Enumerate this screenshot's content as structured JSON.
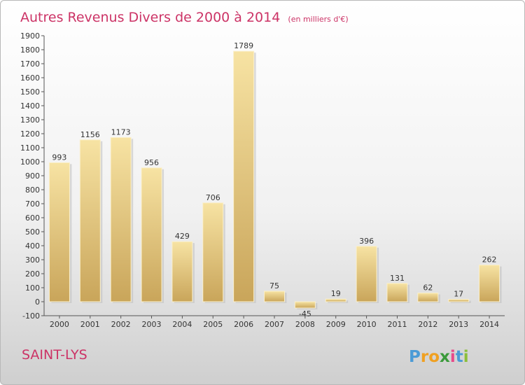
{
  "chart_data": {
    "type": "bar",
    "title": "Autres Revenus Divers de 2000 à 2014",
    "subtitle": "(en milliers d'€)",
    "categories": [
      "2000",
      "2001",
      "2002",
      "2003",
      "2004",
      "2005",
      "2006",
      "2007",
      "2008",
      "2009",
      "2010",
      "2011",
      "2012",
      "2013",
      "2014"
    ],
    "values": [
      993,
      1156,
      1173,
      956,
      429,
      706,
      1789,
      75,
      -45,
      19,
      396,
      131,
      62,
      17,
      262
    ],
    "ylim": [
      -100,
      1900
    ],
    "yticks": [
      -100,
      0,
      100,
      200,
      300,
      400,
      500,
      600,
      700,
      800,
      900,
      1000,
      1100,
      1200,
      1300,
      1400,
      1500,
      1600,
      1700,
      1800,
      1900
    ],
    "grid": false,
    "bar_color": "#e9cf86"
  },
  "location": "SAINT-LYS",
  "brand": {
    "letters": [
      "P",
      "r",
      "o",
      "x",
      "i",
      "t",
      "i"
    ],
    "colors": [
      "#4b9bd6",
      "#f0a020",
      "#f0a020",
      "#3a9a3a",
      "#e84a8a",
      "#4b9bd6",
      "#8bbf3a"
    ]
  }
}
